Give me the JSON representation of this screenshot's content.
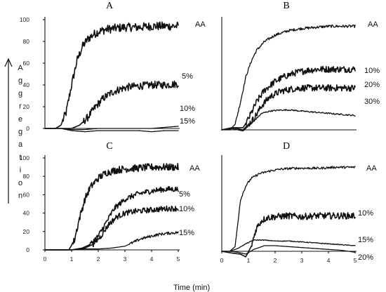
{
  "chart_data": [
    {
      "type": "line",
      "panel": "A",
      "ylim": [
        0,
        100
      ],
      "xlim": [
        0,
        5
      ],
      "yticks": [
        0,
        20,
        40,
        60,
        80,
        100
      ],
      "series": [
        {
          "name": "AA",
          "x": [
            0,
            0.2,
            0.4,
            0.6,
            0.8,
            1.0,
            1.2,
            1.4,
            1.6,
            1.8,
            2.0,
            2.3,
            2.6,
            3.0,
            3.5,
            4.0,
            4.5,
            5.0
          ],
          "y": [
            0,
            0,
            0,
            3,
            15,
            40,
            62,
            75,
            82,
            86,
            89,
            91,
            92,
            93,
            93,
            94,
            94,
            94
          ],
          "noise": 4
        },
        {
          "name": "5%",
          "x": [
            0,
            0.5,
            1.0,
            1.3,
            1.6,
            1.9,
            2.2,
            2.5,
            2.8,
            3.1,
            3.5,
            4.0,
            4.5,
            5.0
          ],
          "y": [
            0,
            0,
            0,
            3,
            10,
            20,
            28,
            33,
            36,
            38,
            39,
            40,
            40,
            41
          ],
          "noise": 3.5
        },
        {
          "name": "10%",
          "x": [
            0,
            0.6,
            1.0,
            1.5,
            2.0,
            2.5,
            3.0,
            3.5,
            4.0,
            4.5,
            5.0
          ],
          "y": [
            0,
            0,
            -1,
            -1,
            0,
            0,
            0,
            0,
            0,
            1,
            2
          ],
          "noise": 0
        },
        {
          "name": "15%",
          "x": [
            0,
            0.6,
            1.0,
            1.5,
            2.0,
            2.5,
            3.0,
            3.5,
            4.0,
            4.5,
            5.0
          ],
          "y": [
            0,
            0,
            -2,
            -3,
            -2,
            -2,
            -2,
            -2,
            -3,
            -2,
            -2
          ],
          "noise": 0
        }
      ]
    },
    {
      "type": "line",
      "panel": "B",
      "ylim": [
        0,
        100
      ],
      "xlim": [
        0,
        5
      ],
      "series": [
        {
          "name": "AA",
          "x": [
            0,
            0.3,
            0.5,
            0.7,
            0.9,
            1.1,
            1.3,
            1.6,
            2.0,
            2.5,
            3.0,
            3.5,
            4.0,
            4.5,
            5.0
          ],
          "y": [
            0,
            0,
            5,
            25,
            48,
            62,
            72,
            80,
            86,
            90,
            92,
            93,
            94,
            94,
            94
          ],
          "noise": 1.2
        },
        {
          "name": "10%",
          "x": [
            0,
            0.4,
            0.8,
            1.0,
            1.3,
            1.6,
            2.0,
            2.4,
            2.8,
            3.2,
            3.6,
            4.0,
            4.5,
            5.0
          ],
          "y": [
            0,
            2,
            2,
            10,
            25,
            36,
            44,
            49,
            52,
            54,
            55,
            55,
            55,
            55
          ],
          "noise": 3
        },
        {
          "name": "20%",
          "x": [
            0,
            0.4,
            0.8,
            1.2,
            1.5,
            1.8,
            2.2,
            2.6,
            3.0,
            3.5,
            4.0,
            4.5,
            5.0
          ],
          "y": [
            0,
            2,
            0,
            10,
            22,
            30,
            35,
            37,
            38,
            38,
            38,
            38,
            38
          ],
          "noise": 3
        },
        {
          "name": "30%",
          "x": [
            0,
            0.4,
            0.8,
            1.2,
            1.5,
            1.8,
            2.2,
            2.6,
            3.0,
            3.5,
            4.0,
            4.5,
            5.0
          ],
          "y": [
            0,
            1,
            -1,
            8,
            15,
            17,
            18,
            18,
            17,
            16,
            15,
            14,
            13
          ],
          "noise": 0.6
        }
      ]
    },
    {
      "type": "line",
      "panel": "C",
      "ylim": [
        0,
        100
      ],
      "xlim": [
        0,
        5
      ],
      "yticks": [
        0,
        20,
        40,
        60,
        80,
        100
      ],
      "xticks": [
        0,
        1,
        2,
        3,
        4,
        5
      ],
      "series": [
        {
          "name": "AA",
          "x": [
            0,
            0.5,
            0.9,
            1.1,
            1.3,
            1.5,
            1.7,
            2.0,
            2.3,
            2.7,
            3.0,
            3.5,
            4.0,
            4.5,
            5.0
          ],
          "y": [
            0,
            0,
            0,
            10,
            35,
            55,
            68,
            78,
            84,
            87,
            88,
            89,
            90,
            90,
            90
          ],
          "noise": 4
        },
        {
          "name": "5%",
          "x": [
            0,
            0.5,
            1.0,
            1.4,
            1.7,
            2.0,
            2.3,
            2.6,
            3.0,
            3.4,
            3.8,
            4.2,
            4.6,
            5.0
          ],
          "y": [
            0,
            0,
            0,
            2,
            6,
            15,
            30,
            45,
            55,
            60,
            63,
            65,
            66,
            66
          ],
          "noise": 3
        },
        {
          "name": "10%",
          "x": [
            0,
            0.5,
            1.0,
            1.5,
            1.8,
            2.1,
            2.4,
            2.7,
            3.0,
            3.4,
            3.8,
            4.2,
            4.6,
            5.0
          ],
          "y": [
            0,
            0,
            0,
            2,
            6,
            15,
            28,
            36,
            40,
            42,
            43,
            44,
            45,
            45
          ],
          "noise": 3
        },
        {
          "name": "15%",
          "x": [
            0,
            0.5,
            1.0,
            1.5,
            2.0,
            2.5,
            3.0,
            3.3,
            3.6,
            4.0,
            4.3,
            4.6,
            5.0
          ],
          "y": [
            0,
            0,
            0,
            1,
            1,
            2,
            4,
            8,
            12,
            15,
            17,
            18,
            19
          ],
          "noise": 1.5
        }
      ]
    },
    {
      "type": "line",
      "panel": "D",
      "ylim": [
        0,
        100
      ],
      "xlim": [
        0,
        5
      ],
      "xticks": [
        0,
        1,
        2,
        3,
        4,
        5
      ],
      "xlabel": "Time (min)",
      "series": [
        {
          "name": "AA",
          "x": [
            0,
            0.3,
            0.5,
            0.6,
            0.7,
            0.9,
            1.1,
            1.4,
            1.8,
            2.2,
            2.7,
            3.2,
            3.7,
            4.2,
            4.6,
            5.0
          ],
          "y": [
            0,
            0,
            5,
            30,
            55,
            70,
            78,
            83,
            86,
            88,
            89,
            89,
            89,
            90,
            90,
            90
          ],
          "noise": 1.2
        },
        {
          "name": "10%",
          "x": [
            0,
            0.4,
            0.7,
            0.9,
            1.1,
            1.3,
            1.5,
            1.7,
            2.0,
            2.5,
            3.0,
            3.5,
            4.0,
            4.5,
            5.0
          ],
          "y": [
            0,
            -2,
            -3,
            -6,
            5,
            25,
            33,
            36,
            37,
            38,
            37,
            38,
            38,
            38,
            38
          ],
          "noise": 3.5
        },
        {
          "name": "15%",
          "x": [
            0,
            0.3,
            0.6,
            0.9,
            1.2,
            1.6,
            2.0,
            2.5,
            3.0,
            3.5,
            4.0,
            4.5,
            5.0
          ],
          "y": [
            0,
            0,
            3,
            8,
            12,
            12,
            11,
            11,
            10,
            9,
            8,
            7,
            6
          ],
          "noise": 0.4
        },
        {
          "name": "20%",
          "x": [
            0,
            0.3,
            0.6,
            0.9,
            1.2,
            1.6,
            2.0,
            2.5,
            3.0,
            3.5,
            4.0,
            4.5,
            5.0
          ],
          "y": [
            0,
            0,
            -1,
            -3,
            2,
            6,
            6,
            5,
            4,
            3,
            2,
            1,
            -1
          ],
          "noise": 0.4
        }
      ]
    }
  ],
  "panel_letters": [
    "A",
    "B",
    "C",
    "D"
  ],
  "yaxis_title": "Aggregation",
  "xaxis_title": "Time (min)"
}
